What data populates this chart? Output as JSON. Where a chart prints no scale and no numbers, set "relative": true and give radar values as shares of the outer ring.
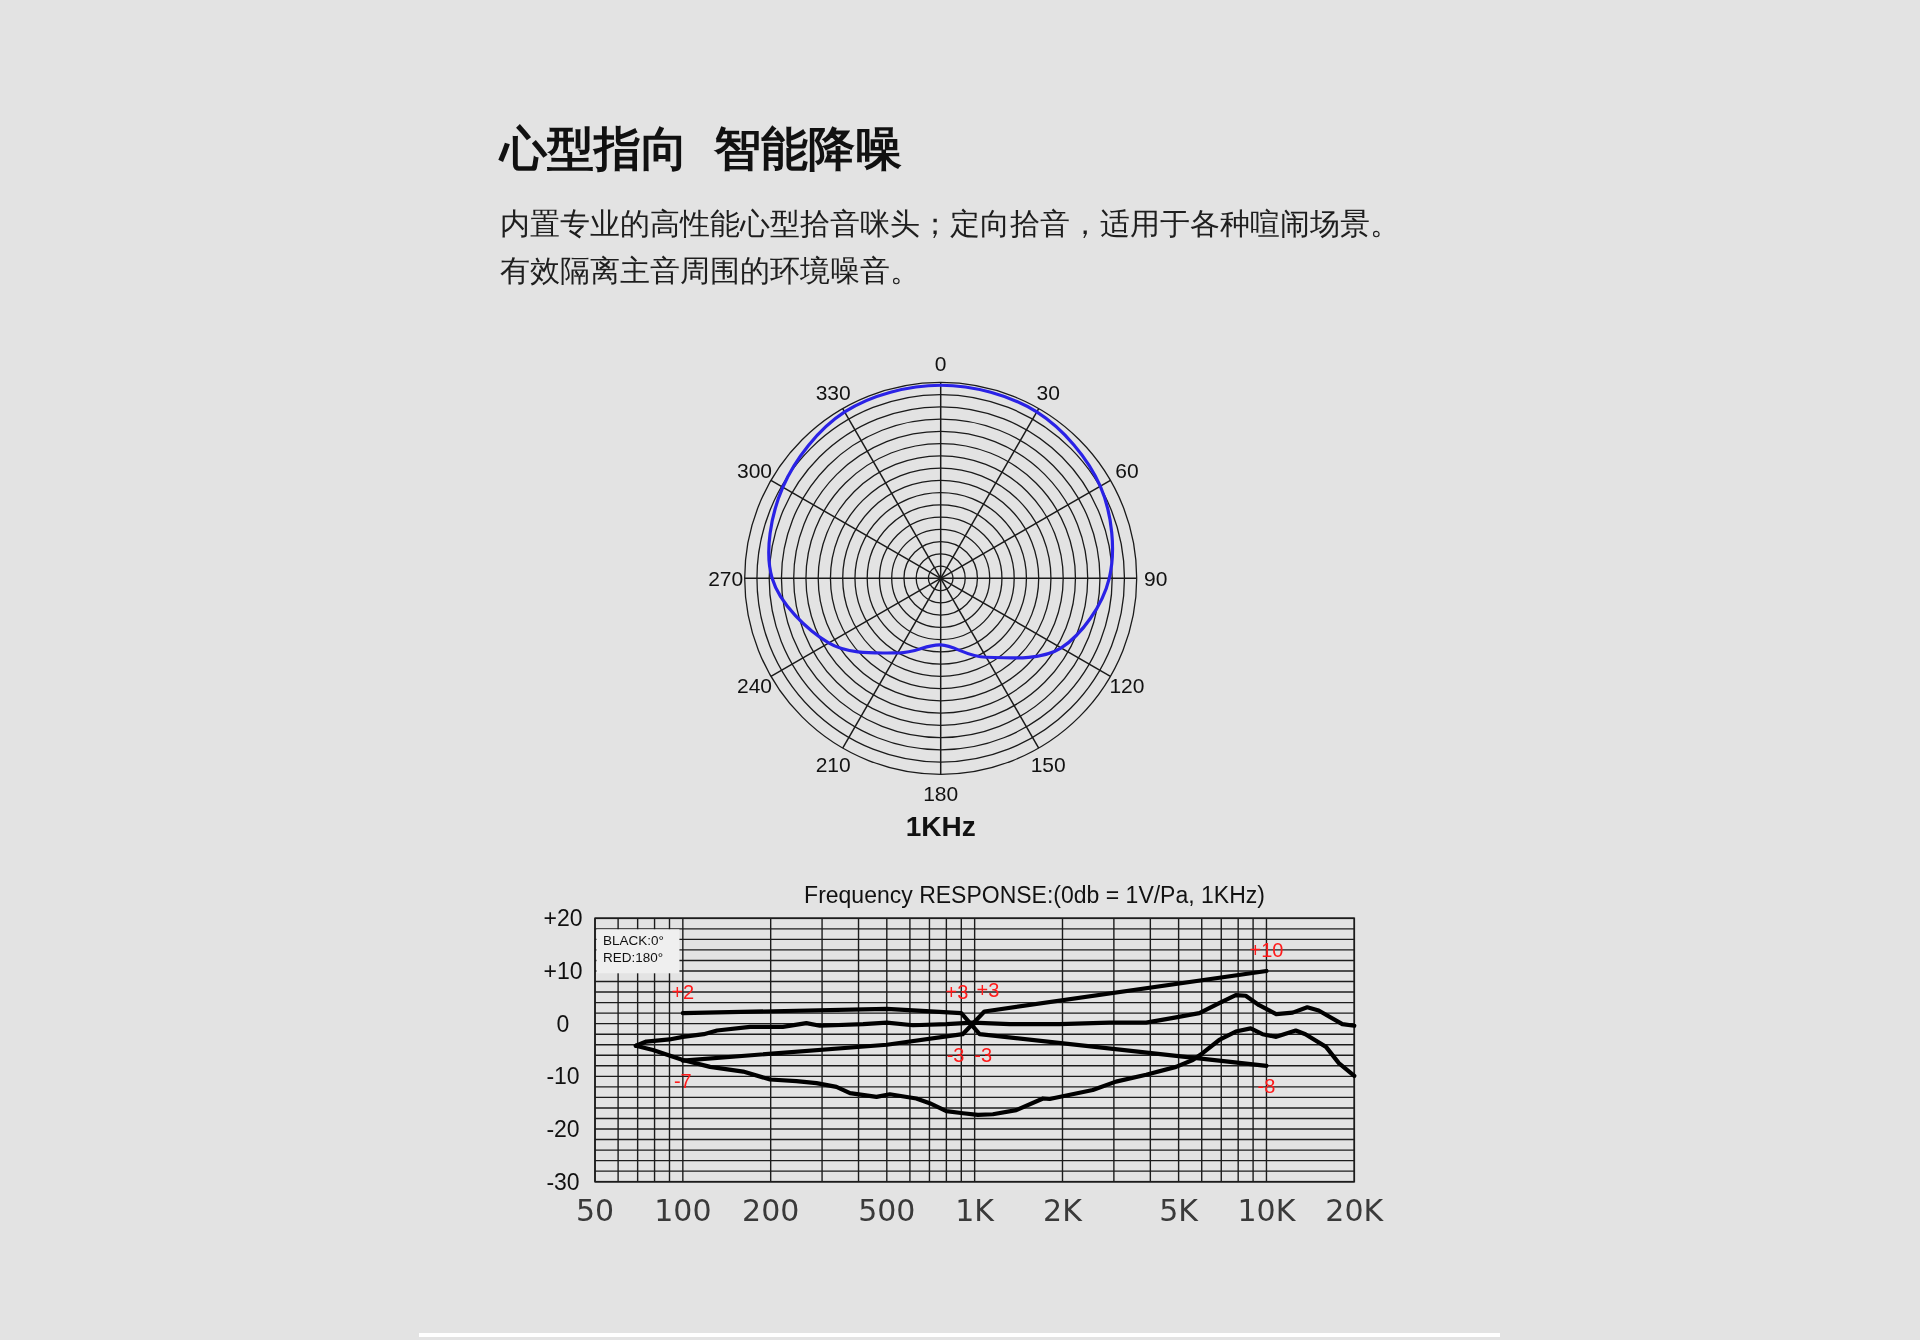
{
  "chart_data": [
    {
      "type": "radar",
      "title": "心型指向 智能降噪",
      "subtitle": "内置专业的高性能心型拾音咪头；定向拾音，适用于各种喧闹场景。有效隔离主音周围的环境噪音。",
      "relative": true,
      "grid": true,
      "categories": [
        "0",
        "30",
        "60",
        "90",
        "120",
        "150",
        "180",
        "210",
        "240",
        "270",
        "300",
        "330"
      ],
      "series": [
        {
          "color": "#2a22e6",
          "values": [
            0.985,
            0.98,
            0.94,
            0.86,
            0.71,
            0.465,
            0.34,
            0.44,
            0.66,
            0.86,
            0.93,
            0.98
          ]
        }
      ],
      "annotations": [
        "1KHz"
      ]
    },
    {
      "type": "line",
      "title": "Frequency RESPONSE:(0db = 1V/Pa, 1KHz)",
      "log": "x",
      "grid": true,
      "xlim": [
        50,
        20000
      ],
      "xticks": [
        50,
        {
          "value": 60,
          "label": null
        },
        {
          "value": 70,
          "label": null
        },
        {
          "value": 80,
          "label": null
        },
        {
          "value": 90,
          "label": null
        },
        100,
        200,
        {
          "value": 300,
          "label": null
        },
        {
          "value": 400,
          "label": null
        },
        500,
        {
          "value": 600,
          "label": null
        },
        {
          "value": 700,
          "label": null
        },
        {
          "value": 800,
          "label": null
        },
        {
          "value": 900,
          "label": null
        },
        {
          "value": 1000,
          "label": "1K"
        },
        {
          "value": 2000,
          "label": "2K"
        },
        {
          "value": 3000,
          "label": null
        },
        {
          "value": 4000,
          "label": null
        },
        {
          "value": 5000,
          "label": "5K"
        },
        {
          "value": 6000,
          "label": null
        },
        {
          "value": 7000,
          "label": null
        },
        {
          "value": 8000,
          "label": null
        },
        {
          "value": 9000,
          "label": null
        },
        {
          "value": 10000,
          "label": "10K"
        },
        {
          "value": 20000,
          "label": "20K"
        }
      ],
      "ylim": [
        -30,
        20
      ],
      "yticks": [
        -30,
        {
          "value": -28,
          "label": null
        },
        {
          "value": -26,
          "label": null
        },
        {
          "value": -24,
          "label": null
        },
        {
          "value": -22,
          "label": null
        },
        -20,
        {
          "value": -18,
          "label": null
        },
        {
          "value": -16,
          "label": null
        },
        {
          "value": -14,
          "label": null
        },
        {
          "value": -12,
          "label": null
        },
        -10,
        {
          "value": -8,
          "label": null
        },
        {
          "value": -6,
          "label": null
        },
        {
          "value": -4,
          "label": null
        },
        {
          "value": -2,
          "label": null
        },
        0,
        {
          "value": 2,
          "label": null
        },
        {
          "value": 4,
          "label": null
        },
        {
          "value": 6,
          "label": null
        },
        {
          "value": 8,
          "label": null
        },
        {
          "value": 10,
          "label": "+10"
        },
        {
          "value": 12,
          "label": null
        },
        {
          "value": 14,
          "label": null
        },
        {
          "value": 16,
          "label": null
        },
        {
          "value": 18,
          "label": null
        },
        {
          "value": 20,
          "label": "+20"
        }
      ],
      "series": [
        {
          "color": "#000000",
          "x": [
            100,
            500,
            900,
            1040,
            10000
          ],
          "values": [
            2,
            2.8,
            2,
            -2,
            -8
          ]
        },
        {
          "color": "#000000",
          "x": [
            100,
            500,
            910,
            1080,
            10000
          ],
          "values": [
            -7,
            -4,
            -2,
            2.3,
            10
          ]
        },
        {
          "color": "#000000",
          "x": [
            69,
            75,
            90,
            100,
            118,
            131,
            170,
            220,
            265,
            295,
            415,
            500,
            615,
            800,
            985,
            1320,
            1950,
            2900,
            3870,
            4900,
            5890,
            6890,
            7850,
            8490,
            9440,
            10800,
            12300,
            13800,
            15100,
            18200,
            20000
          ],
          "values": [
            -4.2,
            -3.4,
            -3.0,
            -2.5,
            -2.0,
            -1.3,
            -0.6,
            -0.6,
            0.1,
            -0.4,
            -0.1,
            0.2,
            -0.3,
            -0.1,
            0.2,
            -0.1,
            -0.1,
            0.2,
            0.2,
            1.2,
            2.0,
            3.9,
            5.4,
            5.3,
            3.5,
            1.8,
            2.1,
            3.1,
            2.5,
            -0.1,
            -0.4
          ]
        },
        {
          "color": "#000000",
          "x": [
            69,
            79,
            100,
            124,
            161,
            199,
            245,
            287,
            336,
            374,
            461,
            512,
            631,
            701,
            800,
            912,
            1026,
            1155,
            1389,
            1715,
            1807,
            2540,
            3050,
            3870,
            4900,
            5590,
            6040,
            6890,
            7850,
            8830,
            9690,
            10800,
            12600,
            13600,
            16000,
            17700,
            20000
          ],
          "values": [
            -4.2,
            -5.0,
            -6.9,
            -8.2,
            -9.1,
            -10.6,
            -10.9,
            -11.3,
            -12.0,
            -13.2,
            -13.9,
            -13.4,
            -14.2,
            -15.1,
            -16.6,
            -17.0,
            -17.3,
            -17.2,
            -16.4,
            -14.2,
            -14.3,
            -12.6,
            -11.0,
            -9.7,
            -8.2,
            -6.9,
            -5.6,
            -3.1,
            -1.5,
            -0.9,
            -2.0,
            -2.5,
            -1.3,
            -2.0,
            -4.4,
            -7.5,
            -9.9
          ]
        }
      ],
      "annotations": [
        "BLACK:0°",
        "RED:180°",
        {
          "text": "+2",
          "x": 100,
          "y": 2
        },
        {
          "text": "-7",
          "x": 100,
          "y": -7
        },
        {
          "text": "+3",
          "x": 870,
          "y": 2
        },
        {
          "text": "+3",
          "x": 1110,
          "y": 2.4
        },
        {
          "text": "-3",
          "x": 860,
          "y": -2.2
        },
        {
          "text": "-3",
          "x": 1070,
          "y": -2.1
        },
        {
          "text": "+10",
          "x": 10000,
          "y": 10
        },
        {
          "text": "-8",
          "x": 10000,
          "y": -8
        }
      ]
    }
  ]
}
